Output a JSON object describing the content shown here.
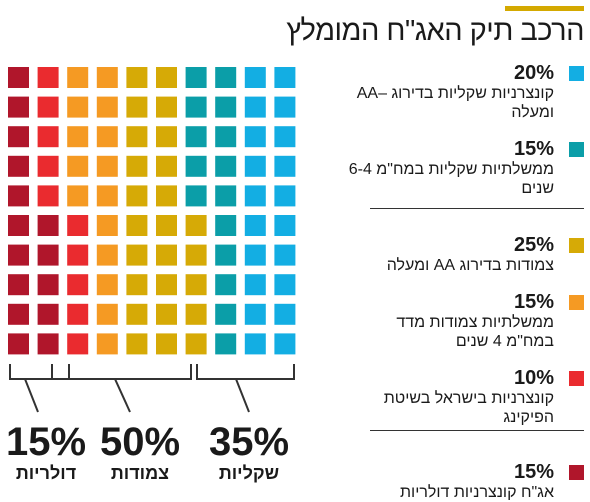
{
  "title": "הרכב תיק האג\"ח המומלץ",
  "colors": {
    "accent": "#d4a900",
    "sky": "#13aee3",
    "teal": "#0b9ea8",
    "mustard": "#d6aa06",
    "orange": "#f59a23",
    "red": "#ea2b2f",
    "crimson": "#b0162b",
    "bracket": "#333333"
  },
  "chart_data": {
    "type": "waffle",
    "units_total": 100,
    "grid": {
      "rows": 10,
      "columns": 10
    },
    "series": [
      {
        "pct": "20%",
        "value": 20,
        "label": "קונצרניות שקליות בדירוג –AA ומעלה",
        "color": "#13aee3"
      },
      {
        "pct": "15%",
        "value": 15,
        "label": "ממשלתיות שקליות במח\"מ 6-4 שנים",
        "color": "#0b9ea8"
      },
      {
        "pct": "25%",
        "value": 25,
        "label": "צמודות בדירוג AA ומעלה",
        "color": "#d6aa06"
      },
      {
        "pct": "15%",
        "value": 15,
        "label": "ממשלתיות צמודות מדד במח\"מ 4 שנים",
        "color": "#f59a23"
      },
      {
        "pct": "10%",
        "value": 10,
        "label": "קונצרניות בישראל בשיטת הפיקינג",
        "color": "#ea2b2f"
      },
      {
        "pct": "15%",
        "value": 15,
        "label": "אג\"ח קונצרניות דולריות",
        "color": "#b0162b"
      }
    ],
    "groups": [
      {
        "pct": "35%",
        "value": 35,
        "label": "שקליות"
      },
      {
        "pct": "50%",
        "value": 50,
        "label": "צמודות"
      },
      {
        "pct": "15%",
        "value": 15,
        "label": "דולריות"
      }
    ]
  }
}
